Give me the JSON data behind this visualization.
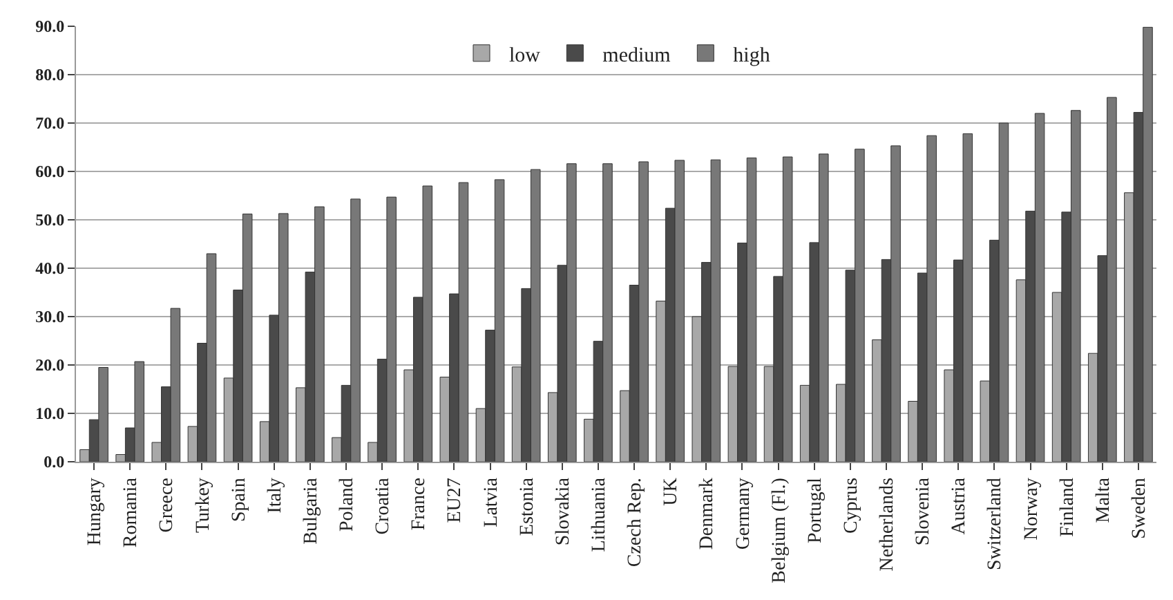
{
  "chart_data": {
    "type": "bar",
    "categories": [
      "Hungary",
      "Romania",
      "Greece",
      "Turkey",
      "Spain",
      "Italy",
      "Bulgaria",
      "Poland",
      "Croatia",
      "France",
      "EU27",
      "Latvia",
      "Estonia",
      "Slovakia",
      "Lithuania",
      "Czech Rep.",
      "UK",
      "Denmark",
      "Germany",
      "Belgium (Fl.)",
      "Portugal",
      "Cyprus",
      "Netherlands",
      "Slovenia",
      "Austria",
      "Switzerland",
      "Norway",
      "Finland",
      "Malta",
      "Sweden"
    ],
    "series": [
      {
        "name": "low",
        "color": "#a8a8a8",
        "values": [
          2.5,
          1.5,
          4,
          7.3,
          17.3,
          8.3,
          15.3,
          5,
          4,
          19,
          17.5,
          11,
          19.6,
          14.3,
          8.8,
          14.7,
          33.2,
          30,
          19.7,
          19.7,
          15.8,
          16,
          25.2,
          12.5,
          19,
          16.7,
          37.6,
          35,
          22.4,
          55.6
        ]
      },
      {
        "name": "medium",
        "color": "#4a4a4a",
        "values": [
          8.7,
          7,
          15.5,
          24.5,
          35.5,
          30.3,
          39.2,
          15.8,
          21.2,
          34,
          34.7,
          27.2,
          35.8,
          40.6,
          24.9,
          36.5,
          52.4,
          41.2,
          45.2,
          38.3,
          45.3,
          39.6,
          41.8,
          39,
          41.7,
          45.8,
          51.8,
          51.6,
          42.6,
          72.2
        ]
      },
      {
        "name": "high",
        "color": "#787878",
        "values": [
          19.5,
          20.7,
          31.7,
          43,
          51.2,
          51.3,
          52.7,
          54.3,
          54.7,
          57,
          57.7,
          58.3,
          60.4,
          61.6,
          61.6,
          62,
          62.3,
          62.4,
          62.8,
          63,
          63.6,
          64.6,
          65.3,
          67.4,
          67.8,
          70,
          72,
          72.6,
          75.3,
          89.8
        ]
      }
    ],
    "ylim": [
      0,
      90
    ],
    "yticks": [
      {
        "value": 0,
        "label": "0.0"
      },
      {
        "value": 10,
        "label": "10.0"
      },
      {
        "value": 20,
        "label": "20.0"
      },
      {
        "value": 30,
        "label": "30.0"
      },
      {
        "value": 40,
        "label": "40.0"
      },
      {
        "value": 50,
        "label": "50.0"
      },
      {
        "value": 60,
        "label": "60.0"
      },
      {
        "value": 70,
        "label": "70.0"
      },
      {
        "value": 80,
        "label": "80.0"
      },
      {
        "value": 90,
        "label": "90.0"
      }
    ],
    "grid": "y",
    "legend": "top"
  }
}
